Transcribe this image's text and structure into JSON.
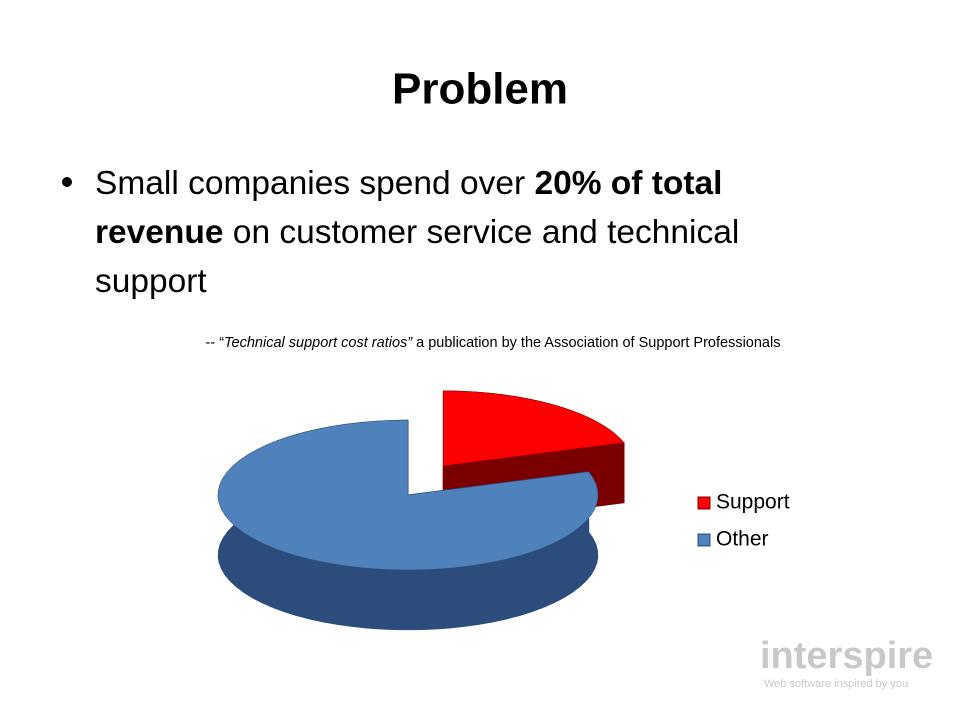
{
  "title": "Problem",
  "bullet_lines": [
    [
      {
        "text": "Small companies spend over ",
        "bold": false
      },
      {
        "text": "20% of total",
        "bold": true
      }
    ],
    [
      {
        "text": "revenue",
        "bold": true
      },
      {
        "text": " on customer service and technical",
        "bold": false
      }
    ],
    [
      {
        "text": "support",
        "bold": false
      }
    ]
  ],
  "citation": [
    {
      "text": "-- “",
      "italic": false
    },
    {
      "text": "Technical support cost ratios”",
      "italic": true
    },
    {
      "text": " a publication by the Association of Support Professionals",
      "italic": false
    }
  ],
  "logo": {
    "name": "interspire",
    "tagline": "Web software inspired by you"
  },
  "chart_data": {
    "type": "pie",
    "categories": [
      "Support",
      "Other"
    ],
    "values": [
      20,
      80
    ],
    "colors": [
      "#ff0000",
      "#4f81bd"
    ],
    "side_colors": [
      "#7a0000",
      "#2c4d7c"
    ],
    "legend": "right",
    "exploded": [
      true,
      false
    ]
  }
}
